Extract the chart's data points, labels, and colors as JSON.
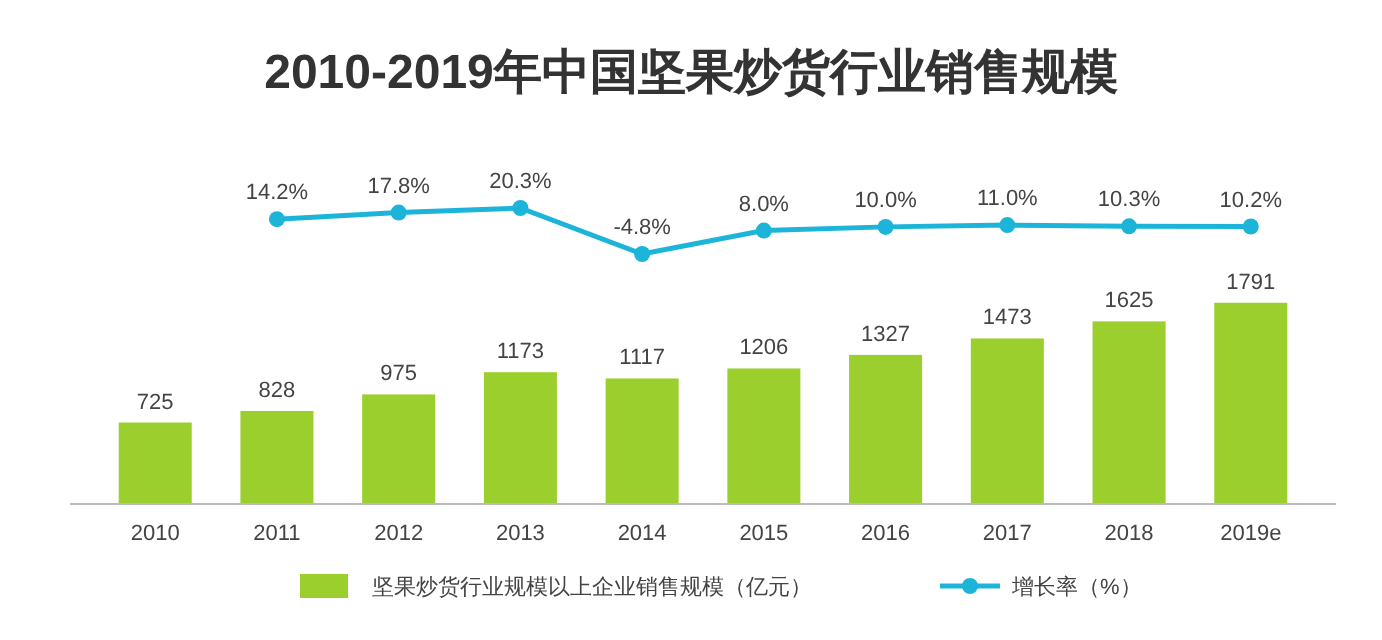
{
  "chart_data": [
    {
      "type": "line",
      "title": "2010-2019年中国坚果炒货行业销售规模",
      "categories": [
        null,
        null,
        null,
        null,
        null,
        null,
        null,
        null,
        null,
        null
      ],
      "series": [
        {
          "name": "增长率（%）",
          "color": "#1cb5d9",
          "values": [
            null,
            14.2,
            17.8,
            20.3,
            -4.8,
            8.0,
            10.0,
            11.0,
            10.3,
            10.2
          ],
          "value_labels": [
            null,
            "14.2%",
            "17.8%",
            "20.3%",
            "-4.8%",
            "8.0%",
            "10.0%",
            "11.0%",
            "10.3%",
            "10.2%"
          ]
        }
      ],
      "marker": "circle",
      "legend": "bottom"
    },
    {
      "type": "bar",
      "categories": [
        "2010",
        "2011",
        "2012",
        "2013",
        "2014",
        "2015",
        "2016",
        "2017",
        "2018",
        "2019e"
      ],
      "series": [
        {
          "name": "坚果炒货行业规模以上企业销售规模（亿元）",
          "color": "#9bcf2e",
          "values": [
            725,
            828,
            975,
            1173,
            1117,
            1206,
            1327,
            1473,
            1625,
            1791
          ]
        }
      ],
      "data_labels": true,
      "legend": "bottom"
    }
  ]
}
